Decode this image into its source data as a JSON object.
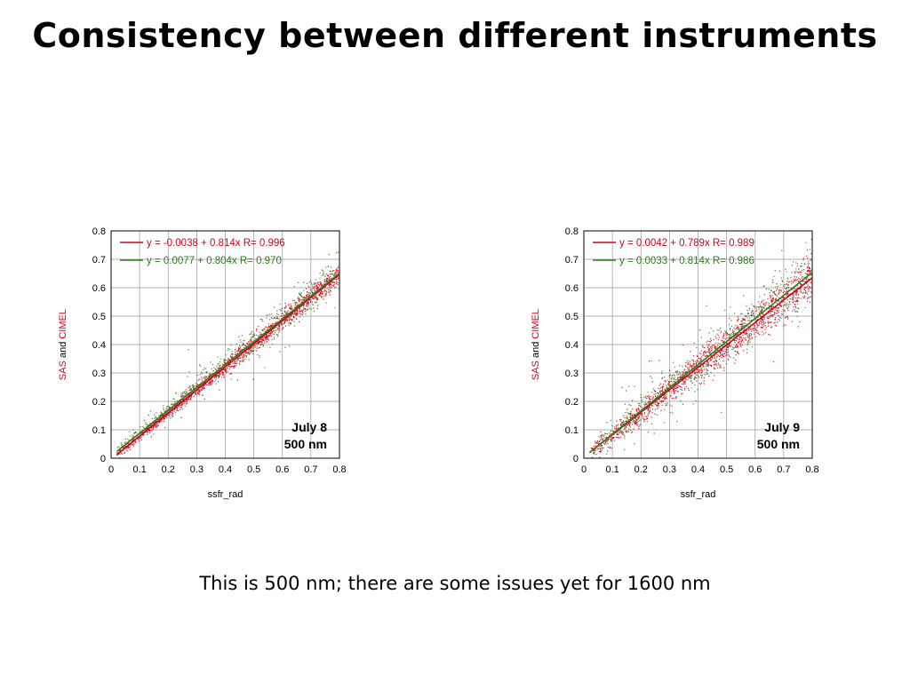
{
  "slide": {
    "title": "Consistency between different instruments",
    "caption": "This is 500 nm; there are some issues yet for 1600 nm"
  },
  "colors": {
    "sas": "#d0021b",
    "cimel": "#2e7d1e",
    "grid": "#999999"
  },
  "chart_data": [
    {
      "type": "scatter",
      "xlabel": "ssfr_rad",
      "ylabel_parts": [
        "SAS",
        "and",
        "CIMEL"
      ],
      "xlim": [
        0,
        0.8
      ],
      "ylim": [
        0,
        0.8
      ],
      "xticks": [
        "0",
        "0.1",
        "0.2",
        "0.3",
        "0.4",
        "0.5",
        "0.6",
        "0.7",
        "0.8"
      ],
      "yticks": [
        "0",
        "0.1",
        "0.2",
        "0.3",
        "0.4",
        "0.5",
        "0.6",
        "0.7",
        "0.8"
      ],
      "grid": true,
      "legend_position": "top-left",
      "annotation": [
        "July 8",
        "500 nm"
      ],
      "annotation_position": "bottom-right",
      "series": [
        {
          "name": "SAS",
          "color": "#d0021b",
          "fit": {
            "intercept": -0.0038,
            "slope": 0.814,
            "r": 0.996,
            "label": "y = -0.0038 + 0.814x    R= 0.996"
          },
          "x_range": [
            0.02,
            0.8
          ],
          "spread": 0.012
        },
        {
          "name": "CIMEL",
          "color": "#2e7d1e",
          "fit": {
            "intercept": 0.0077,
            "slope": 0.804,
            "r": 0.97,
            "label": "y = 0.0077 + 0.804x    R= 0.970"
          },
          "x_range": [
            0.02,
            0.8
          ],
          "spread": 0.02
        }
      ]
    },
    {
      "type": "scatter",
      "xlabel": "ssfr_rad",
      "ylabel_parts": [
        "SAS",
        "and",
        "CIMEL"
      ],
      "xlim": [
        0,
        0.8
      ],
      "ylim": [
        0,
        0.8
      ],
      "xticks": [
        "0",
        "0.1",
        "0.2",
        "0.3",
        "0.4",
        "0.5",
        "0.6",
        "0.7",
        "0.8"
      ],
      "yticks": [
        "0",
        "0.1",
        "0.2",
        "0.3",
        "0.4",
        "0.5",
        "0.6",
        "0.7",
        "0.8"
      ],
      "grid": true,
      "legend_position": "top-left",
      "annotation": [
        "July 9",
        "500 nm"
      ],
      "annotation_position": "bottom-right",
      "series": [
        {
          "name": "SAS",
          "color": "#d0021b",
          "fit": {
            "intercept": 0.0042,
            "slope": 0.789,
            "r": 0.989,
            "label": "y = 0.0042 + 0.789x    R= 0.989"
          },
          "x_range": [
            0.02,
            0.8
          ],
          "spread": 0.025
        },
        {
          "name": "CIMEL",
          "color": "#2e7d1e",
          "fit": {
            "intercept": 0.0033,
            "slope": 0.814,
            "r": 0.986,
            "label": "y = 0.0033 + 0.814x    R= 0.986"
          },
          "x_range": [
            0.02,
            0.8
          ],
          "spread": 0.03
        }
      ]
    }
  ]
}
